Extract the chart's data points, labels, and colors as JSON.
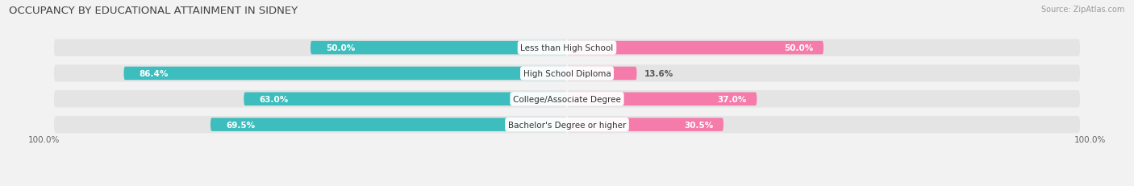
{
  "title": "OCCUPANCY BY EDUCATIONAL ATTAINMENT IN SIDNEY",
  "source": "Source: ZipAtlas.com",
  "categories": [
    "Less than High School",
    "High School Diploma",
    "College/Associate Degree",
    "Bachelor's Degree or higher"
  ],
  "owner_pct": [
    50.0,
    86.4,
    63.0,
    69.5
  ],
  "renter_pct": [
    50.0,
    13.6,
    37.0,
    30.5
  ],
  "owner_color": "#3DBDBD",
  "renter_color": "#F47BAA",
  "bg_color": "#f2f2f2",
  "bar_bg_color": "#e4e4e4",
  "title_fontsize": 9.5,
  "label_fontsize": 7.5,
  "value_fontsize": 7.5,
  "legend_fontsize": 8.0,
  "source_fontsize": 7.0
}
